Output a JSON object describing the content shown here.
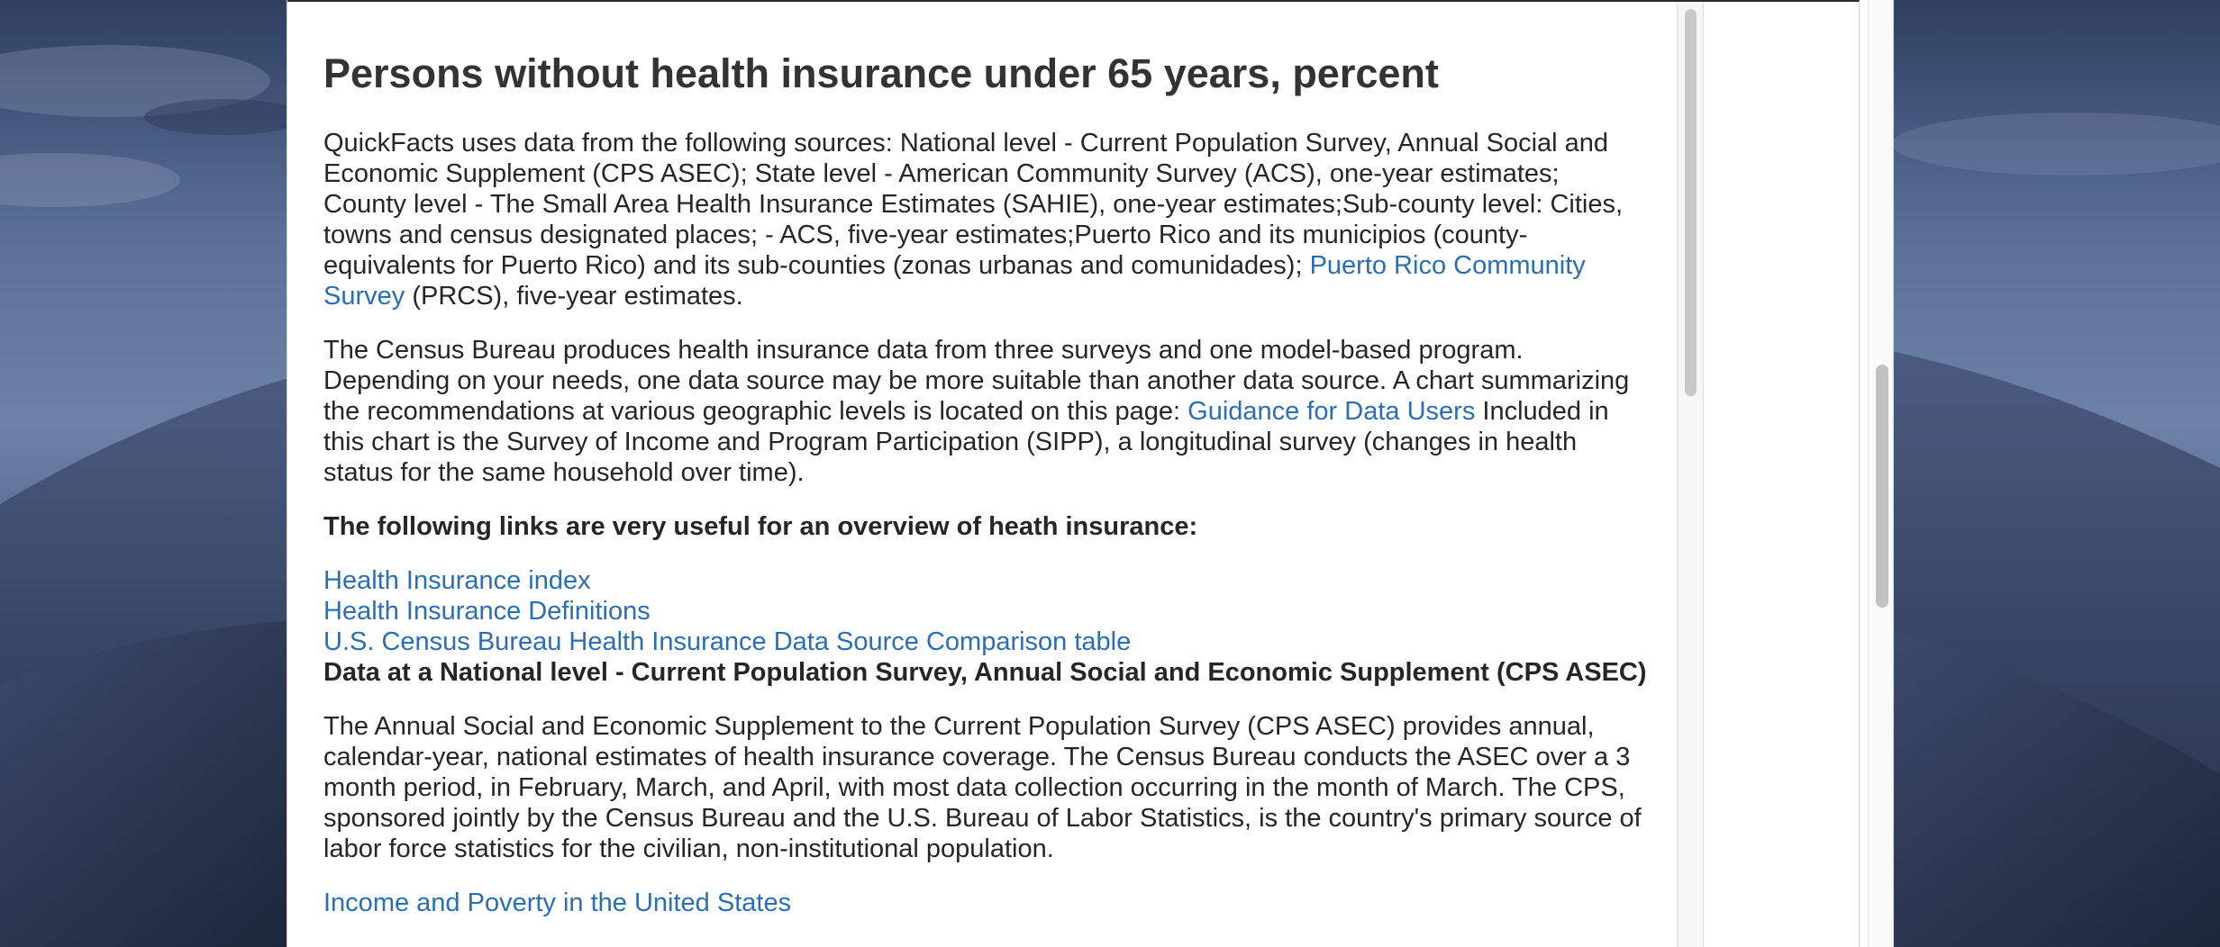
{
  "dialog": {
    "title": "Persons without health insurance under 65 years, percent",
    "para1": {
      "text_before": "QuickFacts uses data from the following sources: National level - Current Population Survey, Annual Social and Economic Supplement (CPS ASEC); State level - American Community Survey (ACS), one-year estimates; County level - The Small Area Health Insurance Estimates (SAHIE), one-year estimates;Sub-county level: Cities, towns and census designated places; - ACS, five-year estimates;Puerto Rico and its municipios (county-equivalents for Puerto Rico) and its sub-counties (zonas urbanas and comunidades); ",
      "link": "Puerto Rico Community Survey",
      "text_after": " (PRCS), five-year estimates."
    },
    "para2": {
      "text_before": "The Census Bureau produces health insurance data from three surveys and one model-based program. Depending on your needs, one data source may be more suitable than another data source. A chart summarizing the recommendations at various geographic levels is located on this page: ",
      "link": "Guidance for Data Users",
      "text_after": " Included in this chart is the Survey of Income and Program Participation (SIPP), a longitudinal survey (changes in health status for the same household over time)."
    },
    "links_heading": "The following links are very useful for an overview of heath insurance:",
    "links": [
      "Health Insurance index",
      "Health Insurance Definitions",
      "U.S. Census Bureau Health Insurance Data Source Comparison table"
    ],
    "national_heading": "Data at a National level - Current Population Survey, Annual Social and Economic Supplement (CPS ASEC)",
    "national_para": "The Annual Social and Economic Supplement to the Current Population Survey (CPS ASEC) provides annual, calendar-year, national estimates of health insurance coverage. The Census Bureau conducts the ASEC over a 3 month period, in February, March, and April, with most data collection occurring in the month of March. The CPS, sponsored jointly by the Census Bureau and the U.S. Bureau of Labor Statistics, is the country's primary source of labor force statistics for the civilian, non-institutional population.",
    "bottom_link": "Income and Poverty in the United States"
  },
  "colors": {
    "link": "#2a6fb5",
    "text": "#262626",
    "title": "#333333"
  }
}
